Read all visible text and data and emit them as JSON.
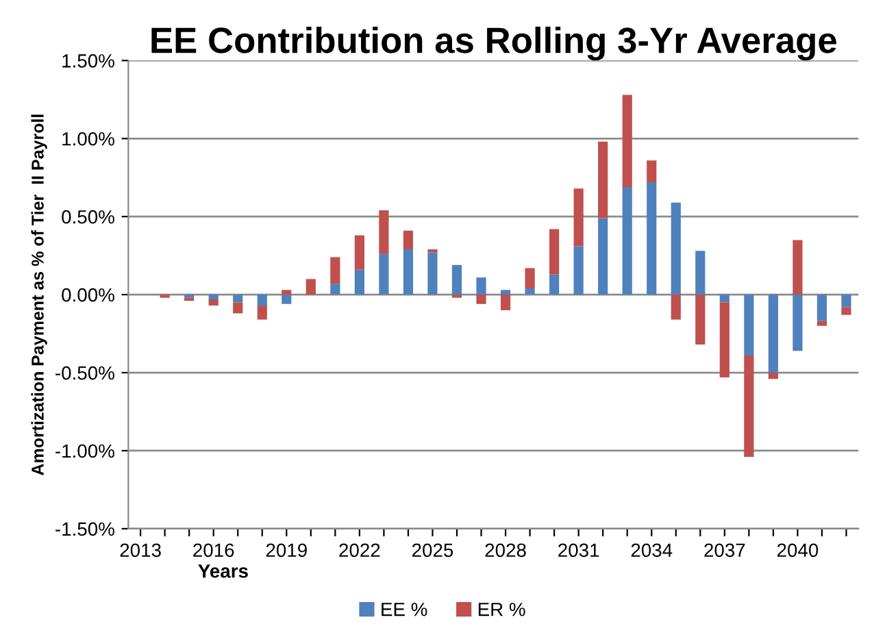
{
  "chart_data": {
    "type": "bar",
    "title": "EE Contribution as Rolling 3-Yr Average",
    "xlabel": "Years",
    "ylabel": "Amortization Payment as % of Tier  II Payroll",
    "categories": [
      "2013",
      null,
      null,
      "2016",
      null,
      null,
      "2019",
      null,
      null,
      "2022",
      null,
      null,
      "2025",
      null,
      null,
      "2028",
      null,
      null,
      "2031",
      null,
      null,
      "2034",
      null,
      null,
      "2037",
      null,
      null,
      "2040",
      null,
      null
    ],
    "stacked": true,
    "series": [
      {
        "name": "EE %",
        "color": "#4f81bd",
        "values": [
          null,
          null,
          -0.02,
          -0.03,
          -0.05,
          -0.07,
          -0.06,
          null,
          0.07,
          0.16,
          0.26,
          0.29,
          0.27,
          0.19,
          0.11,
          0.03,
          0.04,
          0.13,
          0.31,
          0.49,
          0.69,
          0.72,
          0.59,
          0.28,
          -0.05,
          -0.39,
          -0.5,
          -0.36,
          -0.17,
          -0.08
        ]
      },
      {
        "name": "ER %",
        "color": "#c0504d",
        "values": [
          null,
          -0.02,
          -0.02,
          -0.04,
          -0.07,
          -0.09,
          0.03,
          0.1,
          0.17,
          0.22,
          0.28,
          0.12,
          0.02,
          -0.02,
          -0.06,
          -0.1,
          0.13,
          0.29,
          0.37,
          0.49,
          0.59,
          0.14,
          -0.16,
          -0.32,
          -0.48,
          -0.65,
          -0.04,
          0.35,
          -0.03,
          -0.05
        ]
      }
    ],
    "ylim": [
      -1.5,
      1.5
    ],
    "yticks": [
      {
        "value": -1.5,
        "label": "-1.50%"
      },
      {
        "value": -1.0,
        "label": "-1.00%"
      },
      {
        "value": -0.5,
        "label": "-0.50%"
      },
      {
        "value": 0,
        "label": "0.00%"
      },
      {
        "value": 0.5,
        "label": "0.50%"
      },
      {
        "value": 1.0,
        "label": "1.00%"
      },
      {
        "value": 1.5,
        "label": "1.50%"
      }
    ],
    "grid": "y",
    "legend": "bottom"
  }
}
